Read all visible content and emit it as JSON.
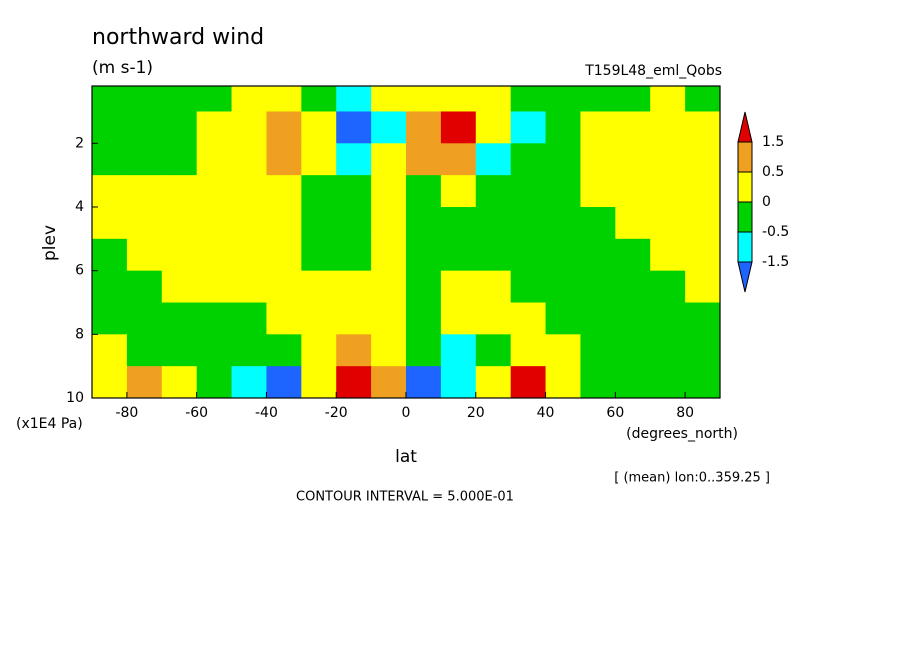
{
  "chart_data": {
    "type": "contour",
    "title": "northward wind",
    "subtitle": "(m s-1)",
    "run_label": "T159L48_eml_Qobs",
    "y_label": "plev",
    "y_unit": "(x1E4 Pa)",
    "x_label": "lat",
    "x_unit": "(degrees_north)",
    "note": "[ (mean) lon:0..359.25 ]",
    "contour_interval": "CONTOUR INTERVAL = 5.000E-01",
    "xlim": [
      -90,
      90
    ],
    "xticks": [
      -80,
      -60,
      -40,
      -20,
      0,
      20,
      40,
      60,
      80
    ],
    "ylim": [
      10,
      0.2
    ],
    "yticks": [
      2,
      4,
      6,
      8,
      10
    ],
    "levels": [
      -1.5,
      -0.5,
      0,
      0.5,
      1.5
    ],
    "colors": [
      "#1e64ff",
      "#00ffff",
      "#00d200",
      "#ffff00",
      "#f0a020",
      "#e00000"
    ],
    "x": [
      -85,
      -75,
      -65,
      -55,
      -45,
      -35,
      -25,
      -15,
      -5,
      5,
      15,
      25,
      35,
      45,
      55,
      65,
      75,
      85
    ],
    "y": [
      0.5,
      1.5,
      2.5,
      3.5,
      4.5,
      5.5,
      6.5,
      7.5,
      8.5,
      9.5
    ],
    "z": [
      [
        -0.2,
        -0.2,
        -0.2,
        -0.2,
        0.2,
        0.2,
        -0.3,
        -0.6,
        0.1,
        0.3,
        0.4,
        0.1,
        -0.2,
        -0.2,
        -0.2,
        -0.2,
        0.2,
        -0.1
      ],
      [
        -0.2,
        -0.2,
        -0.2,
        0.2,
        0.4,
        0.7,
        0.2,
        -1.8,
        -0.6,
        1.2,
        2.0,
        0.3,
        -0.6,
        -0.1,
        0.2,
        0.2,
        0.2,
        0.2
      ],
      [
        -0.2,
        -0.2,
        -0.1,
        0.2,
        0.3,
        0.6,
        0.2,
        -0.8,
        0.1,
        0.6,
        0.7,
        -0.6,
        -0.3,
        -0.2,
        0.2,
        0.2,
        0.2,
        0.2
      ],
      [
        0.2,
        0.2,
        0.2,
        0.2,
        0.2,
        0.2,
        -0.2,
        -0.2,
        0.1,
        -0.1,
        0.2,
        -0.2,
        -0.2,
        -0.2,
        0.2,
        0.2,
        0.2,
        0.2
      ],
      [
        0.2,
        0.2,
        0.2,
        0.2,
        0.2,
        0.2,
        -0.2,
        -0.2,
        0.1,
        -0.1,
        -0.2,
        -0.2,
        -0.2,
        -0.2,
        -0.2,
        0.2,
        0.2,
        0.2
      ],
      [
        -0.2,
        0.2,
        0.2,
        0.2,
        0.2,
        0.2,
        -0.2,
        -0.2,
        0.1,
        -0.1,
        -0.2,
        -0.2,
        -0.2,
        -0.2,
        -0.2,
        -0.2,
        0.2,
        0.2
      ],
      [
        -0.2,
        -0.2,
        0.2,
        0.2,
        0.2,
        0.2,
        0.2,
        0.2,
        0.1,
        -0.1,
        0.2,
        0.2,
        -0.2,
        -0.2,
        -0.2,
        -0.2,
        -0.2,
        0.2
      ],
      [
        -0.2,
        -0.2,
        -0.2,
        -0.2,
        -0.2,
        0.2,
        0.2,
        0.2,
        0.1,
        -0.1,
        0.2,
        0.2,
        0.2,
        -0.2,
        -0.2,
        -0.2,
        -0.2,
        -0.2
      ],
      [
        0.2,
        -0.2,
        -0.2,
        -0.2,
        -0.2,
        -0.3,
        0.2,
        0.6,
        0.4,
        -0.4,
        -0.6,
        -0.2,
        0.3,
        0.2,
        -0.2,
        -0.2,
        -0.2,
        -0.2
      ],
      [
        0.2,
        0.6,
        0.2,
        -0.2,
        -0.8,
        -1.8,
        0.3,
        1.8,
        1.2,
        -1.6,
        -1.0,
        0.2,
        1.8,
        0.3,
        -0.2,
        -0.3,
        -0.2,
        -0.2
      ]
    ]
  }
}
